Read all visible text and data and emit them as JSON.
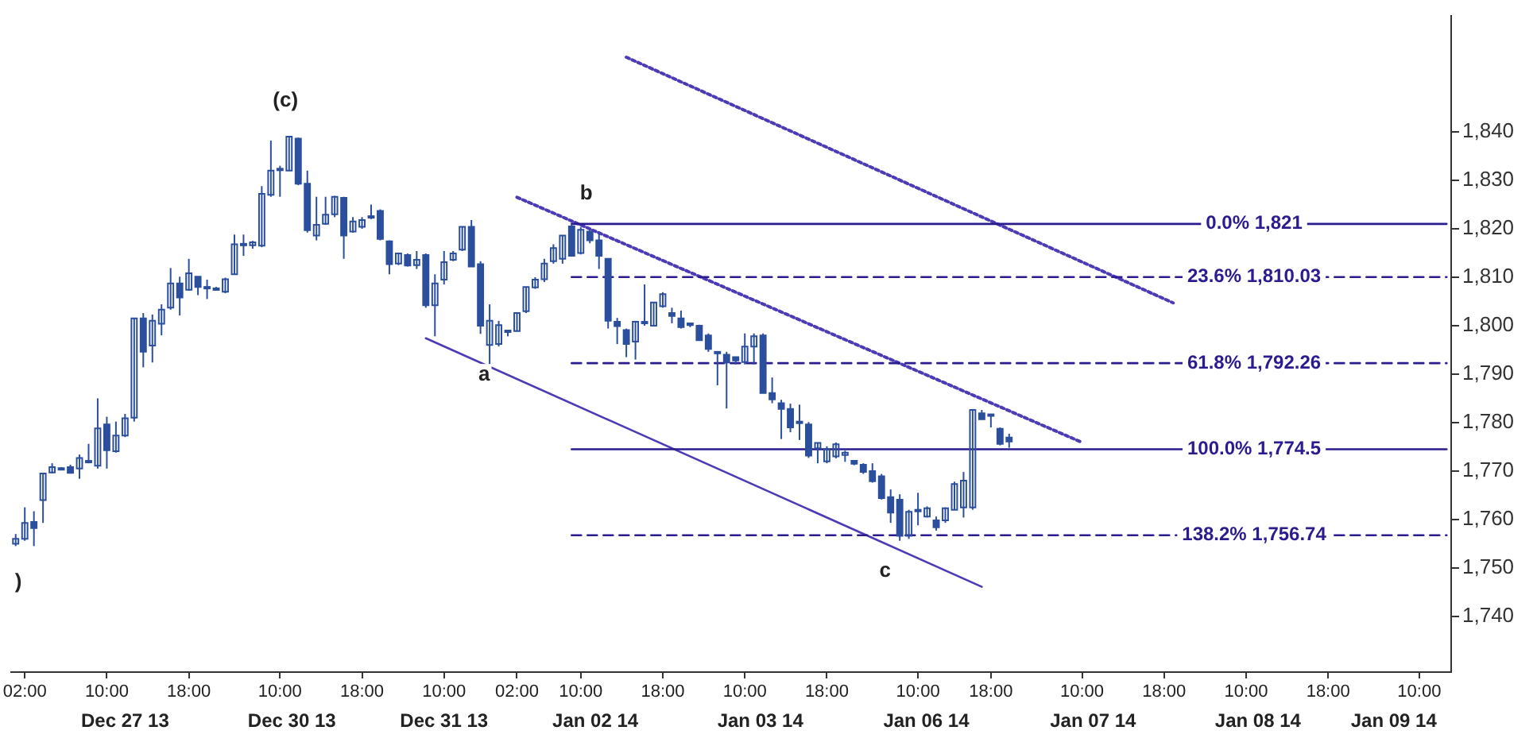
{
  "chart_data": {
    "type": "candlestick",
    "color": "#2b4f9c",
    "categories": [
      null,
      "02:00",
      null,
      null,
      null,
      null,
      null,
      null,
      null,
      null,
      "10:00",
      null,
      null,
      null,
      null,
      null,
      null,
      null,
      null,
      "18:00",
      null,
      null,
      null,
      null,
      null,
      null,
      null,
      null,
      null,
      "10:00",
      null,
      null,
      null,
      null,
      null,
      null,
      null,
      null,
      "18:00",
      null,
      null,
      null,
      null,
      null,
      null,
      null,
      null,
      "10:00",
      null,
      null,
      null,
      null,
      null,
      null,
      null,
      "02:00",
      null,
      null,
      null,
      null,
      null,
      null,
      "10:00",
      null,
      null,
      null,
      null,
      null,
      null,
      null,
      null,
      "18:00",
      null,
      null,
      null,
      null,
      null,
      null,
      null,
      null,
      "10:00",
      null,
      null,
      null,
      null,
      null,
      null,
      null,
      null,
      "18:00",
      null,
      null,
      null,
      null,
      null,
      null,
      null,
      null,
      null,
      "10:00",
      null,
      null,
      null,
      null,
      null,
      null,
      null,
      "18:00",
      null,
      null,
      null,
      null,
      null,
      null,
      null,
      null,
      null,
      "10:00",
      null,
      null,
      null,
      null,
      null,
      null,
      null,
      null,
      "18:00",
      null,
      null,
      null,
      null,
      null,
      null,
      null,
      null,
      "10:00",
      null,
      null,
      null,
      null,
      null,
      null,
      null,
      null,
      "18:00",
      null,
      null,
      null,
      null,
      null,
      null,
      null,
      null,
      null,
      "10:00",
      null,
      null,
      null
    ],
    "ohlc": [
      [
        1755,
        1757,
        1754.5,
        1756
      ],
      [
        1756,
        1762.5,
        1755.6,
        1759.3
      ],
      [
        1759.5,
        1761.7,
        1754.5,
        1758.2
      ],
      [
        1764,
        1769.5,
        1759.3,
        1769.5
      ],
      [
        1769.7,
        1771.6,
        1769.5,
        1770.8
      ],
      [
        1770.5,
        1770.8,
        1770.3,
        1770.6
      ],
      [
        1770.8,
        1771.3,
        1769.5,
        1769.6
      ],
      [
        1770.5,
        1773.4,
        1768.4,
        1772.7
      ],
      [
        1771.9,
        1775.6,
        1771.6,
        1772.1
      ],
      [
        1771.1,
        1785,
        1770.5,
        1778.8
      ],
      [
        1779.6,
        1781.2,
        1770.5,
        1774.3
      ],
      [
        1774.1,
        1780.2,
        1773.8,
        1777.3
      ],
      [
        1777.3,
        1781.8,
        1777,
        1780.9
      ],
      [
        1781,
        1801.5,
        1780.2,
        1801.5
      ],
      [
        1801.5,
        1802.6,
        1791.4,
        1794.6
      ],
      [
        1795.9,
        1802.3,
        1792.4,
        1801
      ],
      [
        1800.4,
        1804.4,
        1798,
        1803.3
      ],
      [
        1803.7,
        1811.9,
        1803.3,
        1808.7
      ],
      [
        1808.7,
        1810.1,
        1802.1,
        1805.8
      ],
      [
        1807.4,
        1813.8,
        1807.2,
        1810.8
      ],
      [
        1810.1,
        1810.1,
        1806.3,
        1808
      ],
      [
        1808,
        1809.5,
        1805.5,
        1807.9
      ],
      [
        1807.6,
        1808,
        1807.4,
        1807.7
      ],
      [
        1807,
        1809.9,
        1806.7,
        1809.6
      ],
      [
        1810.6,
        1818.8,
        1810.6,
        1816.8
      ],
      [
        1816.8,
        1818.8,
        1814.4,
        1816.9
      ],
      [
        1816.6,
        1817.5,
        1815.9,
        1817.2
      ],
      [
        1816.5,
        1828.8,
        1816.2,
        1827.2
      ],
      [
        1827,
        1838.2,
        1826.6,
        1832
      ],
      [
        1832.2,
        1833,
        1826.6,
        1832.4
      ],
      [
        1832,
        1839,
        1832,
        1839
      ],
      [
        1838.6,
        1838.8,
        1829,
        1829.3
      ],
      [
        1829.3,
        1832,
        1819.2,
        1819.7
      ],
      [
        1818.6,
        1826.6,
        1817.6,
        1820.8
      ],
      [
        1821,
        1826.6,
        1820.8,
        1822.9
      ],
      [
        1823,
        1826.8,
        1822.4,
        1826.6
      ],
      [
        1826.4,
        1826.6,
        1813.8,
        1818.6
      ],
      [
        1819.4,
        1822.4,
        1819.2,
        1821.5
      ],
      [
        1820.4,
        1822.4,
        1820,
        1821.8
      ],
      [
        1822.6,
        1825,
        1822,
        1822.5
      ],
      [
        1823.7,
        1824,
        1817.6,
        1817.9
      ],
      [
        1817.4,
        1817.6,
        1810.6,
        1812.7
      ],
      [
        1812.8,
        1815,
        1812.5,
        1814.9
      ],
      [
        1814.6,
        1814.9,
        1812.2,
        1812.4
      ],
      [
        1812.5,
        1815.4,
        1811.7,
        1813.6
      ],
      [
        1814.6,
        1814.9,
        1803.7,
        1804.2
      ],
      [
        1804.2,
        1810.6,
        1797.8,
        1808.7
      ],
      [
        1809.5,
        1815.4,
        1808.5,
        1813.1
      ],
      [
        1813.6,
        1815.4,
        1813.3,
        1814.9
      ],
      [
        1815.7,
        1820.4,
        1815.4,
        1820.4
      ],
      [
        1820.4,
        1821.8,
        1812.2,
        1812.2
      ],
      [
        1812.7,
        1813.3,
        1798.3,
        1800
      ],
      [
        1796,
        1804.4,
        1791.9,
        1801
      ],
      [
        1796.2,
        1801,
        1795.7,
        1800.1
      ],
      [
        1798.8,
        1799.1,
        1797.8,
        1799
      ],
      [
        1798.9,
        1802.6,
        1798.9,
        1802.6
      ],
      [
        1803,
        1808,
        1802.6,
        1808
      ],
      [
        1807.9,
        1810,
        1807.6,
        1809.5
      ],
      [
        1809.6,
        1813.8,
        1809,
        1812.8
      ],
      [
        1813.3,
        1816.8,
        1812.8,
        1816
      ],
      [
        1813.8,
        1818.6,
        1812.8,
        1818.6
      ],
      [
        1820.5,
        1821,
        1814.4,
        1814.4
      ],
      [
        1815,
        1820.3,
        1814.7,
        1819.8
      ],
      [
        1819.4,
        1819.7,
        1817,
        1817.6
      ],
      [
        1817.6,
        1819,
        1811.7,
        1814.4
      ],
      [
        1813.8,
        1813.8,
        1799.4,
        1801
      ],
      [
        1800.8,
        1801.6,
        1796.2,
        1799.9
      ],
      [
        1799.1,
        1799.4,
        1793.5,
        1796.2
      ],
      [
        1796.7,
        1801,
        1793,
        1800.8
      ],
      [
        1800.7,
        1808.5,
        1800,
        1800.8
      ],
      [
        1800,
        1804.8,
        1800,
        1804.8
      ],
      [
        1804,
        1806.9,
        1803.7,
        1806.5
      ],
      [
        1802.6,
        1803.7,
        1800.5,
        1802
      ],
      [
        1801.5,
        1803.1,
        1799.4,
        1799.7
      ],
      [
        1800.5,
        1800.5,
        1799.7,
        1800.1
      ],
      [
        1800,
        1800.2,
        1797,
        1797
      ],
      [
        1798,
        1798.4,
        1794.6,
        1795.2
      ],
      [
        1794.6,
        1794.6,
        1787.7,
        1794.5
      ],
      [
        1794,
        1794.6,
        1782.9,
        1792.4
      ],
      [
        1793.5,
        1793.6,
        1792,
        1792.8
      ],
      [
        1792.5,
        1798.4,
        1792,
        1795.7
      ],
      [
        1795.7,
        1798.4,
        1792,
        1797.8
      ],
      [
        1798,
        1798.4,
        1786.1,
        1786.1
      ],
      [
        1786.1,
        1789.3,
        1784,
        1784.8
      ],
      [
        1784,
        1784.7,
        1776.6,
        1782.8
      ],
      [
        1782.8,
        1783.9,
        1778,
        1779
      ],
      [
        1780.2,
        1783.7,
        1776.4,
        1780.1
      ],
      [
        1779.6,
        1780.1,
        1772.7,
        1773.2
      ],
      [
        1774.7,
        1775.9,
        1771.6,
        1775.8
      ],
      [
        1772,
        1775.1,
        1771.6,
        1774.5
      ],
      [
        1773,
        1775.9,
        1772.6,
        1775.5
      ],
      [
        1773.3,
        1774.2,
        1771.9,
        1773.8
      ],
      [
        1772.1,
        1772.1,
        1771.2,
        1771.5
      ],
      [
        1771.3,
        1771.6,
        1769.4,
        1769.8
      ],
      [
        1770,
        1771.6,
        1767.6,
        1767.9
      ],
      [
        1768.9,
        1769.4,
        1764.1,
        1764.4
      ],
      [
        1764.6,
        1766.2,
        1759.3,
        1761.4
      ],
      [
        1764.1,
        1765.2,
        1755.6,
        1756.6
      ],
      [
        1756.6,
        1762,
        1756,
        1761.6
      ],
      [
        1761.9,
        1765.5,
        1758.8,
        1762
      ],
      [
        1760.6,
        1762.7,
        1760.4,
        1762.3
      ],
      [
        1759.8,
        1760.6,
        1757.7,
        1758.4
      ],
      [
        1759.8,
        1762.5,
        1759.3,
        1762.3
      ],
      [
        1762,
        1767.8,
        1762,
        1767.3
      ],
      [
        1762.5,
        1769.8,
        1760.4,
        1768
      ],
      [
        1762.5,
        1782.8,
        1762,
        1782.6
      ],
      [
        1781.9,
        1782.6,
        1780.6,
        1780.7
      ],
      [
        1781.7,
        1781.7,
        1779,
        1781.6
      ],
      [
        1778.7,
        1779,
        1775.3,
        1775.6
      ],
      [
        1776.9,
        1777.7,
        1774.8,
        1776.1
      ],
      null,
      null,
      null,
      null,
      null,
      null,
      null,
      null,
      null,
      null,
      null,
      null,
      null,
      null,
      null,
      null,
      null,
      null,
      null,
      null,
      null,
      null,
      null,
      null,
      null,
      null,
      null,
      null,
      null,
      null,
      null,
      null,
      null,
      null,
      null,
      null,
      null,
      null,
      null,
      null,
      null,
      null,
      null,
      null,
      null,
      null,
      null,
      null
    ],
    "series": [
      {
        "type": "line",
        "name": "0.0% 1,821",
        "color": "#2a1b8f",
        "line_style": "solid",
        "values": [
          null,
          null,
          null,
          null,
          null,
          null,
          null,
          null,
          null,
          null,
          null,
          null,
          null,
          null,
          null,
          null,
          null,
          null,
          null,
          null,
          null,
          null,
          null,
          null,
          null,
          null,
          null,
          null,
          null,
          null,
          null,
          null,
          null,
          null,
          null,
          null,
          null,
          null,
          null,
          null,
          null,
          null,
          null,
          null,
          null,
          null,
          null,
          null,
          null,
          null,
          null,
          null,
          null,
          null,
          null,
          null,
          null,
          null,
          null,
          null,
          null,
          1821,
          null,
          null,
          null,
          null,
          null,
          null,
          null,
          null,
          null,
          null,
          null,
          null,
          null,
          null,
          null,
          null,
          null,
          null,
          null,
          null,
          null,
          null,
          null,
          null,
          null,
          null,
          null,
          null,
          null,
          null,
          null,
          null,
          null,
          null,
          null,
          null,
          null,
          null,
          null,
          null,
          null,
          null,
          null,
          null,
          null,
          null,
          null,
          null,
          null,
          null,
          null,
          null,
          null,
          null,
          null,
          null,
          null,
          null,
          null,
          null,
          null,
          null,
          null,
          null,
          null,
          null,
          null,
          null,
          null,
          null,
          null,
          null,
          null,
          null,
          null,
          null,
          null,
          null,
          null,
          null,
          null,
          null,
          null,
          null,
          null,
          null,
          null,
          null,
          null,
          null,
          null,
          null,
          null,
          null,
          null,
          1821
        ]
      },
      {
        "type": "line",
        "name": "23.6% 1,810.03",
        "color": "#2a1b8f",
        "line_style": "dashed",
        "values": [
          null,
          null,
          null,
          null,
          null,
          null,
          null,
          null,
          null,
          null,
          null,
          null,
          null,
          null,
          null,
          null,
          null,
          null,
          null,
          null,
          null,
          null,
          null,
          null,
          null,
          null,
          null,
          null,
          null,
          null,
          null,
          null,
          null,
          null,
          null,
          null,
          null,
          null,
          null,
          null,
          null,
          null,
          null,
          null,
          null,
          null,
          null,
          null,
          null,
          null,
          null,
          null,
          null,
          null,
          null,
          null,
          null,
          null,
          null,
          null,
          null,
          1810.03,
          null,
          null,
          null,
          null,
          null,
          null,
          null,
          null,
          null,
          null,
          null,
          null,
          null,
          null,
          null,
          null,
          null,
          null,
          null,
          null,
          null,
          null,
          null,
          null,
          null,
          null,
          null,
          null,
          null,
          null,
          null,
          null,
          null,
          null,
          null,
          null,
          null,
          null,
          null,
          null,
          null,
          null,
          null,
          null,
          null,
          null,
          null,
          null,
          null,
          null,
          null,
          null,
          null,
          null,
          null,
          null,
          null,
          null,
          null,
          null,
          null,
          null,
          null,
          null,
          null,
          null,
          null,
          null,
          null,
          null,
          null,
          null,
          null,
          null,
          null,
          null,
          null,
          null,
          null,
          null,
          null,
          null,
          null,
          null,
          null,
          null,
          null,
          null,
          null,
          null,
          null,
          null,
          null,
          null,
          null,
          1810.03
        ]
      },
      {
        "type": "line",
        "name": "61.8% 1,792.26",
        "color": "#2a1b8f",
        "line_style": "dashed",
        "values": [
          null,
          null,
          null,
          null,
          null,
          null,
          null,
          null,
          null,
          null,
          null,
          null,
          null,
          null,
          null,
          null,
          null,
          null,
          null,
          null,
          null,
          null,
          null,
          null,
          null,
          null,
          null,
          null,
          null,
          null,
          null,
          null,
          null,
          null,
          null,
          null,
          null,
          null,
          null,
          null,
          null,
          null,
          null,
          null,
          null,
          null,
          null,
          null,
          null,
          null,
          null,
          null,
          null,
          null,
          null,
          null,
          null,
          null,
          null,
          null,
          null,
          1792.26,
          null,
          null,
          null,
          null,
          null,
          null,
          null,
          null,
          null,
          null,
          null,
          null,
          null,
          null,
          null,
          null,
          null,
          null,
          null,
          null,
          null,
          null,
          null,
          null,
          null,
          null,
          null,
          null,
          null,
          null,
          null,
          null,
          null,
          null,
          null,
          null,
          null,
          null,
          null,
          null,
          null,
          null,
          null,
          null,
          null,
          null,
          null,
          null,
          null,
          null,
          null,
          null,
          null,
          null,
          null,
          null,
          null,
          null,
          null,
          null,
          null,
          null,
          null,
          null,
          null,
          null,
          null,
          null,
          null,
          null,
          null,
          null,
          null,
          null,
          null,
          null,
          null,
          null,
          null,
          null,
          null,
          null,
          null,
          null,
          null,
          null,
          null,
          null,
          null,
          null,
          null,
          null,
          null,
          null,
          null,
          1792.26
        ]
      },
      {
        "type": "line",
        "name": "100.0% 1,774.5",
        "color": "#2a1b8f",
        "line_style": "solid",
        "values": [
          null,
          null,
          null,
          null,
          null,
          null,
          null,
          null,
          null,
          null,
          null,
          null,
          null,
          null,
          null,
          null,
          null,
          null,
          null,
          null,
          null,
          null,
          null,
          null,
          null,
          null,
          null,
          null,
          null,
          null,
          null,
          null,
          null,
          null,
          null,
          null,
          null,
          null,
          null,
          null,
          null,
          null,
          null,
          null,
          null,
          null,
          null,
          null,
          null,
          null,
          null,
          null,
          null,
          null,
          null,
          null,
          null,
          null,
          null,
          null,
          null,
          1774.5,
          null,
          null,
          null,
          null,
          null,
          null,
          null,
          null,
          null,
          null,
          null,
          null,
          null,
          null,
          null,
          null,
          null,
          null,
          null,
          null,
          null,
          null,
          null,
          null,
          null,
          null,
          null,
          null,
          null,
          null,
          null,
          null,
          null,
          null,
          null,
          null,
          null,
          null,
          null,
          null,
          null,
          null,
          null,
          null,
          null,
          null,
          null,
          null,
          null,
          null,
          null,
          null,
          null,
          null,
          null,
          null,
          null,
          null,
          null,
          null,
          null,
          null,
          null,
          null,
          null,
          null,
          null,
          null,
          null,
          null,
          null,
          null,
          null,
          null,
          null,
          null,
          null,
          null,
          null,
          null,
          null,
          null,
          null,
          null,
          null,
          null,
          null,
          null,
          null,
          null,
          null,
          null,
          null,
          null,
          null,
          1774.5
        ]
      },
      {
        "type": "line",
        "name": "138.2% 1,756.74",
        "color": "#2a1b8f",
        "line_style": "dashed",
        "values": [
          null,
          null,
          null,
          null,
          null,
          null,
          null,
          null,
          null,
          null,
          null,
          null,
          null,
          null,
          null,
          null,
          null,
          null,
          null,
          null,
          null,
          null,
          null,
          null,
          null,
          null,
          null,
          null,
          null,
          null,
          null,
          null,
          null,
          null,
          null,
          null,
          null,
          null,
          null,
          null,
          null,
          null,
          null,
          null,
          null,
          null,
          null,
          null,
          null,
          null,
          null,
          null,
          null,
          null,
          null,
          null,
          null,
          null,
          null,
          null,
          null,
          1756.74,
          null,
          null,
          null,
          null,
          null,
          null,
          null,
          null,
          null,
          null,
          null,
          null,
          null,
          null,
          null,
          null,
          null,
          null,
          null,
          null,
          null,
          null,
          null,
          null,
          null,
          null,
          null,
          null,
          null,
          null,
          null,
          null,
          null,
          null,
          null,
          null,
          null,
          null,
          null,
          null,
          null,
          null,
          null,
          null,
          null,
          null,
          null,
          null,
          null,
          null,
          null,
          null,
          null,
          null,
          null,
          null,
          null,
          null,
          null,
          null,
          null,
          null,
          null,
          null,
          null,
          null,
          null,
          null,
          null,
          null,
          null,
          null,
          null,
          null,
          null,
          null,
          null,
          null,
          null,
          null,
          null,
          null,
          null,
          null,
          null,
          null,
          null,
          null,
          null,
          null,
          null,
          null,
          null,
          null,
          null,
          1756.74
        ]
      },
      {
        "type": "line",
        "color": "#4b3bb5",
        "line_style": "solid",
        "values": [
          null,
          null,
          null,
          null,
          null,
          null,
          null,
          null,
          null,
          null,
          null,
          null,
          null,
          null,
          null,
          null,
          null,
          null,
          null,
          null,
          null,
          null,
          null,
          null,
          null,
          null,
          null,
          null,
          null,
          null,
          null,
          null,
          null,
          null,
          null,
          null,
          null,
          null,
          null,
          null,
          null,
          null,
          null,
          null,
          null,
          1797.4,
          null,
          null,
          null,
          null,
          null,
          null,
          null,
          null,
          null,
          null,
          null,
          null,
          null,
          null,
          null,
          null,
          null,
          null,
          null,
          null,
          null,
          null,
          null,
          null,
          null,
          null,
          null,
          null,
          null,
          null,
          null,
          null,
          null,
          null,
          null,
          null,
          null,
          null,
          null,
          null,
          null,
          null,
          null,
          null,
          null,
          null,
          null,
          null,
          null,
          null,
          null,
          null,
          null,
          null,
          null,
          null,
          null,
          null,
          null,
          null,
          1746.1,
          null,
          null,
          null,
          null,
          null,
          null,
          null,
          null,
          null,
          null,
          null,
          null,
          null,
          null,
          null,
          null,
          null,
          null,
          null,
          null,
          null,
          null,
          null,
          null,
          null,
          null,
          null,
          null,
          null,
          null,
          null,
          null,
          null,
          null,
          null,
          null,
          null,
          null,
          null,
          null,
          null,
          null,
          null,
          null,
          null,
          null,
          null,
          null,
          null,
          null,
          null
        ]
      },
      {
        "type": "line",
        "color": "#4b3bb5",
        "line_style": "dotted",
        "values": [
          null,
          null,
          null,
          null,
          null,
          null,
          null,
          null,
          null,
          null,
          null,
          null,
          null,
          null,
          null,
          null,
          null,
          null,
          null,
          null,
          null,
          null,
          null,
          null,
          null,
          null,
          null,
          null,
          null,
          null,
          null,
          null,
          null,
          null,
          null,
          null,
          null,
          null,
          null,
          null,
          null,
          null,
          null,
          null,
          null,
          null,
          null,
          null,
          null,
          null,
          null,
          null,
          null,
          null,
          null,
          1826.5,
          null,
          null,
          null,
          null,
          null,
          null,
          null,
          null,
          null,
          null,
          null,
          null,
          null,
          null,
          null,
          null,
          null,
          null,
          null,
          null,
          null,
          null,
          null,
          null,
          null,
          null,
          null,
          null,
          null,
          null,
          null,
          null,
          null,
          null,
          null,
          null,
          null,
          null,
          null,
          null,
          null,
          null,
          null,
          null,
          null,
          null,
          null,
          null,
          null,
          null,
          null,
          null,
          null,
          null,
          null,
          null,
          null,
          null,
          null,
          null,
          null,
          1775.9,
          null,
          null,
          null,
          null,
          null,
          null,
          null,
          null,
          null,
          null,
          null,
          null,
          null,
          null,
          null,
          null,
          null,
          null,
          null,
          null,
          null,
          null,
          null,
          null,
          null,
          null,
          null,
          null,
          null,
          null,
          null,
          null,
          null,
          null,
          null,
          null,
          null,
          null,
          null,
          null
        ]
      },
      {
        "type": "line",
        "color": "#4b3bb5",
        "line_style": "dotted",
        "values": [
          null,
          null,
          null,
          null,
          null,
          null,
          null,
          null,
          null,
          null,
          null,
          null,
          null,
          null,
          null,
          null,
          null,
          null,
          null,
          null,
          null,
          null,
          null,
          null,
          null,
          null,
          null,
          null,
          null,
          null,
          null,
          null,
          null,
          null,
          null,
          null,
          null,
          null,
          null,
          null,
          null,
          null,
          null,
          null,
          null,
          null,
          null,
          null,
          null,
          null,
          null,
          null,
          null,
          null,
          null,
          null,
          null,
          null,
          null,
          null,
          null,
          null,
          null,
          null,
          null,
          null,
          null,
          1855.4,
          null,
          null,
          null,
          null,
          null,
          null,
          null,
          null,
          null,
          null,
          null,
          null,
          null,
          null,
          null,
          null,
          null,
          null,
          null,
          null,
          null,
          null,
          null,
          null,
          null,
          null,
          null,
          null,
          null,
          null,
          null,
          null,
          null,
          null,
          null,
          null,
          null,
          null,
          null,
          null,
          null,
          null,
          null,
          null,
          null,
          null,
          null,
          null,
          null,
          null,
          null,
          null,
          null,
          null,
          null,
          null,
          null,
          null,
          null,
          1804.7,
          null,
          null,
          null,
          null,
          null,
          null,
          null,
          null,
          null,
          null,
          null,
          null,
          null,
          null,
          null,
          null,
          null,
          null,
          null,
          null,
          null,
          null,
          null,
          null,
          null,
          null,
          null,
          null,
          null,
          null
        ]
      }
    ],
    "annotations": [
      "(c)",
      "b",
      "a",
      "c",
      ")",
      "Dec 27 13",
      "Dec 30 13",
      "Dec 31 13",
      "Jan 02 14",
      "Jan 03 14",
      "Jan 06 14",
      "Jan 07 14",
      "Jan 08 14",
      "Jan 09 14"
    ],
    "ylim": [
      1728.5,
      1864
    ],
    "yticks": [
      {
        "value": 1740,
        "label": "1,740"
      },
      {
        "value": 1750,
        "label": "1,750"
      },
      {
        "value": 1760,
        "label": "1,760"
      },
      {
        "value": 1770,
        "label": "1,770"
      },
      {
        "value": 1780,
        "label": "1,780"
      },
      {
        "value": 1790,
        "label": "1,790"
      },
      {
        "value": 1800,
        "label": "1,800"
      },
      {
        "value": 1810,
        "label": "1,810"
      },
      {
        "value": 1820,
        "label": "1,820"
      },
      {
        "value": 1830,
        "label": "1,830"
      },
      {
        "value": 1840,
        "label": "1,840"
      }
    ]
  }
}
